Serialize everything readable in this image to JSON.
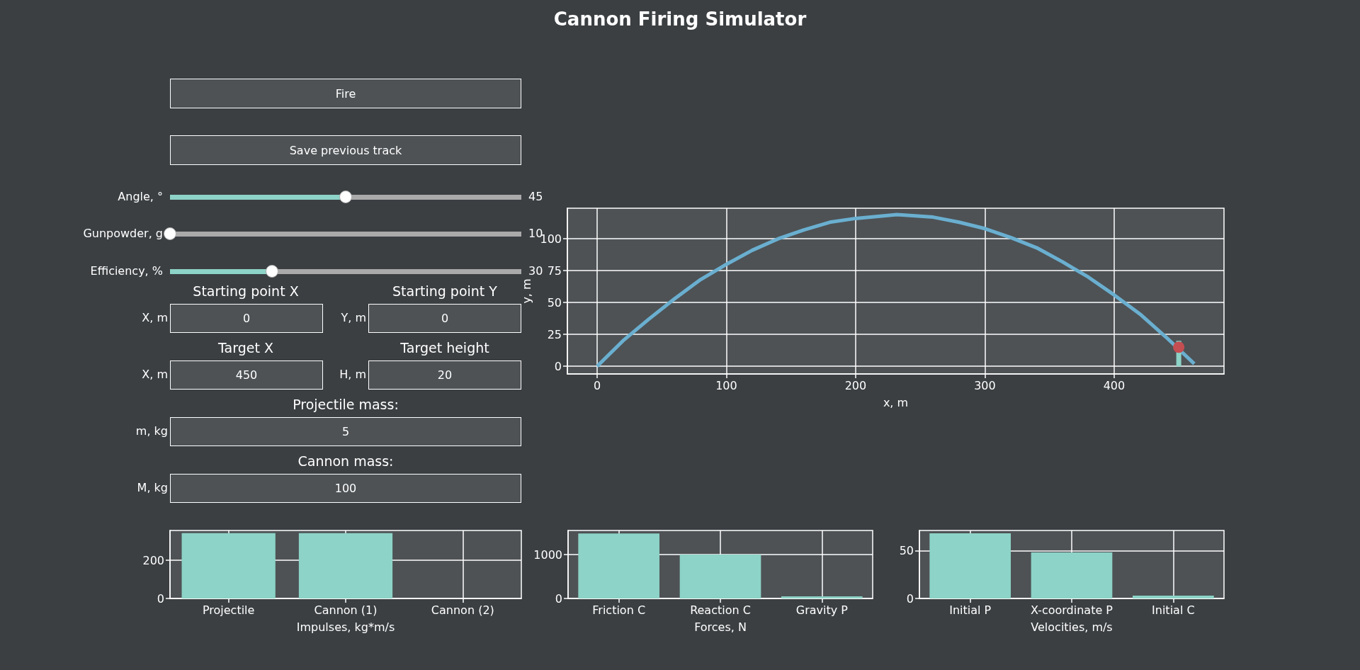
{
  "chart_data": [
    {
      "type": "other",
      "title": "Cannon Firing Simulator",
      "annotations": [
        "Fire",
        "Save previous track",
        "Angle, °",
        "45",
        "Gunpowder, g",
        "10",
        "Efficiency, %",
        "30",
        "Starting point X",
        "Starting point Y",
        "X, m",
        "0",
        "Y, m",
        "0",
        "Target X",
        "Target height",
        "X, m",
        "450",
        "H, m",
        "20",
        "Projectile mass:",
        "m, kg",
        "5",
        "Cannon mass:",
        "M, kg",
        "100"
      ]
    },
    {
      "type": "line",
      "xlabel": "x, m",
      "ylabel": "y, m",
      "xlim": [
        -23,
        485
      ],
      "ylim": [
        -6,
        124
      ],
      "xticks": [
        0,
        100,
        200,
        300,
        400
      ],
      "yticks": [
        0,
        25,
        50,
        75,
        100
      ],
      "grid": true,
      "series": [
        {
          "type": "line",
          "color": "#6aafd0",
          "x": [
            0,
            20,
            40,
            60,
            80,
            100,
            120,
            140,
            160,
            180,
            200,
            232,
            260,
            280,
            300,
            320,
            340,
            360,
            380,
            400,
            420,
            440,
            462
          ],
          "values": [
            0,
            20,
            37,
            53,
            68,
            80,
            91,
            100,
            107,
            113,
            116,
            119,
            117,
            113,
            108,
            101,
            93,
            82,
            70,
            56,
            41,
            23,
            2
          ]
        },
        {
          "type": "line",
          "color": "#8dd3c7",
          "x": [
            450,
            450
          ],
          "values": [
            0,
            20
          ]
        },
        {
          "type": "scatter",
          "color": "#c44e52",
          "marker": "circle",
          "x": [
            450
          ],
          "values": [
            15
          ]
        }
      ]
    },
    {
      "type": "bar",
      "xlabel": "Impulses, kg*m/s",
      "categories": [
        "Projectile",
        "Cannon (1)",
        "Cannon (2)"
      ],
      "values": [
        342,
        342,
        0
      ],
      "color": "#8dd3c7",
      "ylim": [
        0,
        356
      ],
      "yticks": [
        0,
        200
      ],
      "grid": true
    },
    {
      "type": "bar",
      "xlabel": "Forces, N",
      "categories": [
        "Friction C",
        "Reaction C",
        "Gravity P"
      ],
      "values": [
        1480,
        1000,
        50
      ],
      "color": "#8dd3c7",
      "ylim": [
        0,
        1550
      ],
      "yticks": [
        0,
        1000
      ],
      "grid": true
    },
    {
      "type": "bar",
      "xlabel": "Velocities, m/s",
      "categories": [
        "Initial P",
        "X-coordinate P",
        "Initial C"
      ],
      "values": [
        68,
        48,
        3
      ],
      "color": "#8dd3c7",
      "ylim": [
        0,
        71
      ],
      "yticks": [
        0,
        50
      ],
      "grid": true
    }
  ]
}
